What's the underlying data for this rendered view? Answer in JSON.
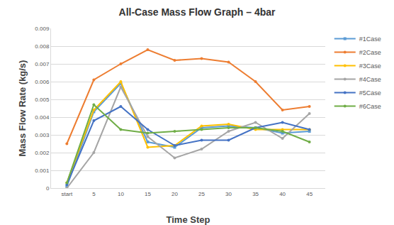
{
  "chart_data": {
    "type": "line",
    "title": "All-Case Mass Flow Graph – 4bar",
    "x_label": "Time Step",
    "y_label": "Mass Flow Rate (kg/s)",
    "categories": [
      "start",
      "5",
      "10",
      "15",
      "20",
      "25",
      "30",
      "35",
      "40",
      "45"
    ],
    "series": [
      {
        "name": "#1Case",
        "color": "#5b9bd5",
        "marker": "square",
        "values": [
          0.0001,
          0.0043,
          0.0059,
          0.0026,
          0.0023,
          0.0034,
          0.0035,
          0.0034,
          0.0031,
          0.0032
        ]
      },
      {
        "name": "#2Case",
        "color": "#ed7d31",
        "marker": "circle",
        "values": [
          0.0025,
          0.0061,
          0.007,
          0.0078,
          0.0072,
          0.0073,
          0.0071,
          0.006,
          0.0044,
          0.0046
        ]
      },
      {
        "name": "#3Case",
        "color": "#ffc000",
        "marker": "circle",
        "values": [
          0.0003,
          0.0044,
          0.006,
          0.0023,
          0.0024,
          0.0035,
          0.0036,
          0.0033,
          0.0033,
          0.0033
        ]
      },
      {
        "name": "#4Case",
        "color": "#a5a5a5",
        "marker": "circle",
        "values": [
          0.0,
          0.002,
          0.0057,
          0.0029,
          0.0017,
          0.0022,
          0.0032,
          0.0037,
          0.0028,
          0.0042
        ]
      },
      {
        "name": "#5Case",
        "color": "#4472c4",
        "marker": "circle",
        "values": [
          0.0002,
          0.0038,
          0.0046,
          0.0033,
          0.0024,
          0.0027,
          0.0027,
          0.0034,
          0.0037,
          0.0033
        ]
      },
      {
        "name": "#6Case",
        "color": "#70ad47",
        "marker": "circle",
        "values": [
          0.0003,
          0.0047,
          0.0033,
          0.0031,
          0.0032,
          0.0033,
          0.0034,
          0.0034,
          0.0032,
          0.0026
        ]
      }
    ],
    "ylim": [
      0,
      0.009
    ],
    "yticks": [
      0,
      0.001,
      0.002,
      0.003,
      0.004,
      0.005,
      0.006,
      0.007,
      0.008,
      0.009
    ],
    "grid": true,
    "legend": "right"
  }
}
